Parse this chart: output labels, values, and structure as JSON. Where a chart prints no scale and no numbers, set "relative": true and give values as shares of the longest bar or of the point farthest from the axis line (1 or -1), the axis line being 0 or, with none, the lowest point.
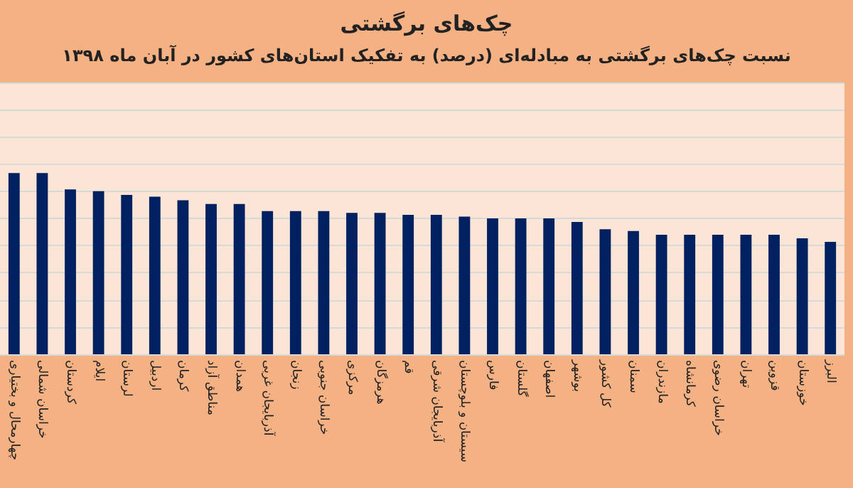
{
  "chart_data": {
    "type": "bar",
    "title": "چک‌های برگشتی",
    "subtitle": "نسبت چک‌های برگشتی به مبادله‌ای (درصد) به تفکیک استان‌های کشور در آبان ماه ۱۳۹۸",
    "relative": true,
    "grid": "y",
    "color": "#002060",
    "categories": [
      "چهارمحال و بختیاری",
      "خراسان شمالی",
      "کردستان",
      "ایلام",
      "لرستان",
      "اردبیل",
      "کرمان",
      "مناطق آزاد",
      "همدان",
      "آذربایجان غربی",
      "زنجان",
      "خراسان جنوبی",
      "مرکزی",
      "هرمزگان",
      "قم",
      "آذربایجان شرقی",
      "سیستان و بلوچستان",
      "فارس",
      "گلستان",
      "اصفهان",
      "بوشهر",
      "کل کشور",
      "سمنان",
      "مازندران",
      "کرمانشاه",
      "خراسان رضوی",
      "تهران",
      "قزوین",
      "خوزستان",
      "البرز"
    ],
    "values": [
      1,
      1,
      0.91,
      0.9,
      0.88,
      0.87,
      0.85,
      0.83,
      0.83,
      0.79,
      0.79,
      0.79,
      0.78,
      0.78,
      0.77,
      0.77,
      0.76,
      0.75,
      0.75,
      0.75,
      0.73,
      0.69,
      0.68,
      0.66,
      0.66,
      0.66,
      0.66,
      0.66,
      0.64,
      0.62
    ]
  }
}
